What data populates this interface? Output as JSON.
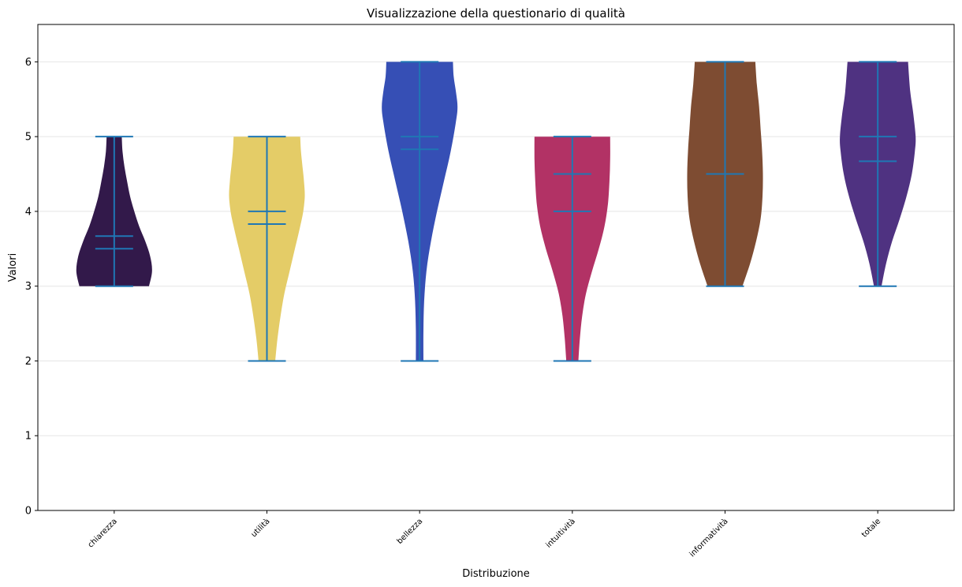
{
  "chart_data": {
    "type": "violin",
    "title": "Visualizzazione della questionario di qualità",
    "xlabel": "Distribuzione",
    "ylabel": "Valori",
    "ylim": [
      0,
      6.5
    ],
    "yticks": [
      0,
      1,
      2,
      3,
      4,
      5,
      6
    ],
    "grid": "horizontal",
    "series": [
      {
        "name": "chiarezza",
        "color": "#32194a",
        "min": 3,
        "max": 5,
        "mean": 3.67,
        "median": 3.5,
        "density": [
          [
            3,
            0.92
          ],
          [
            3.2,
            1.0
          ],
          [
            3.4,
            0.95
          ],
          [
            3.6,
            0.82
          ],
          [
            3.8,
            0.66
          ],
          [
            4.0,
            0.53
          ],
          [
            4.2,
            0.42
          ],
          [
            4.4,
            0.34
          ],
          [
            4.6,
            0.27
          ],
          [
            4.8,
            0.22
          ],
          [
            5,
            0.2
          ]
        ]
      },
      {
        "name": "utilità",
        "color": "#e4cc67",
        "min": 2,
        "max": 5,
        "mean": 3.83,
        "median": 4,
        "density": [
          [
            2,
            0.22
          ],
          [
            2.3,
            0.28
          ],
          [
            2.6,
            0.36
          ],
          [
            2.9,
            0.46
          ],
          [
            3.2,
            0.6
          ],
          [
            3.5,
            0.74
          ],
          [
            3.8,
            0.88
          ],
          [
            4.0,
            0.96
          ],
          [
            4.2,
            1.0
          ],
          [
            4.4,
            0.98
          ],
          [
            4.6,
            0.94
          ],
          [
            4.8,
            0.9
          ],
          [
            5,
            0.88
          ]
        ]
      },
      {
        "name": "bellezza",
        "color": "#364fb5",
        "min": 2,
        "max": 6,
        "mean": 4.83,
        "median": 5,
        "density": [
          [
            2,
            0.1
          ],
          [
            2.4,
            0.1
          ],
          [
            2.8,
            0.12
          ],
          [
            3.2,
            0.18
          ],
          [
            3.6,
            0.3
          ],
          [
            4.0,
            0.46
          ],
          [
            4.4,
            0.64
          ],
          [
            4.8,
            0.82
          ],
          [
            5.2,
            0.96
          ],
          [
            5.4,
            1.0
          ],
          [
            5.6,
            0.96
          ],
          [
            5.8,
            0.9
          ],
          [
            6,
            0.88
          ]
        ]
      },
      {
        "name": "intuitività",
        "color": "#b23265",
        "min": 2,
        "max": 5,
        "mean": 4,
        "median": 4.5,
        "density": [
          [
            2,
            0.16
          ],
          [
            2.3,
            0.2
          ],
          [
            2.6,
            0.26
          ],
          [
            2.9,
            0.36
          ],
          [
            3.2,
            0.52
          ],
          [
            3.5,
            0.7
          ],
          [
            3.8,
            0.85
          ],
          [
            4.1,
            0.94
          ],
          [
            4.4,
            0.98
          ],
          [
            4.7,
            1.0
          ],
          [
            5,
            1.0
          ]
        ]
      },
      {
        "name": "informatività",
        "color": "#7e4c32",
        "min": 3,
        "max": 6,
        "mean": 4.5,
        "median": 4.5,
        "density": [
          [
            3,
            0.46
          ],
          [
            3.3,
            0.66
          ],
          [
            3.6,
            0.82
          ],
          [
            3.9,
            0.94
          ],
          [
            4.2,
            0.99
          ],
          [
            4.5,
            1.0
          ],
          [
            4.8,
            0.98
          ],
          [
            5.1,
            0.94
          ],
          [
            5.4,
            0.9
          ],
          [
            5.7,
            0.84
          ],
          [
            6,
            0.8
          ]
        ]
      },
      {
        "name": "totale",
        "color": "#4f3281",
        "min": 3,
        "max": 6,
        "mean": 4.67,
        "median": 5,
        "density": [
          [
            3,
            0.1
          ],
          [
            3.3,
            0.22
          ],
          [
            3.6,
            0.38
          ],
          [
            3.9,
            0.58
          ],
          [
            4.2,
            0.76
          ],
          [
            4.5,
            0.9
          ],
          [
            4.8,
            0.98
          ],
          [
            5.0,
            1.0
          ],
          [
            5.3,
            0.94
          ],
          [
            5.6,
            0.86
          ],
          [
            6,
            0.8
          ]
        ]
      }
    ],
    "marker_color": "#1f77b4"
  }
}
